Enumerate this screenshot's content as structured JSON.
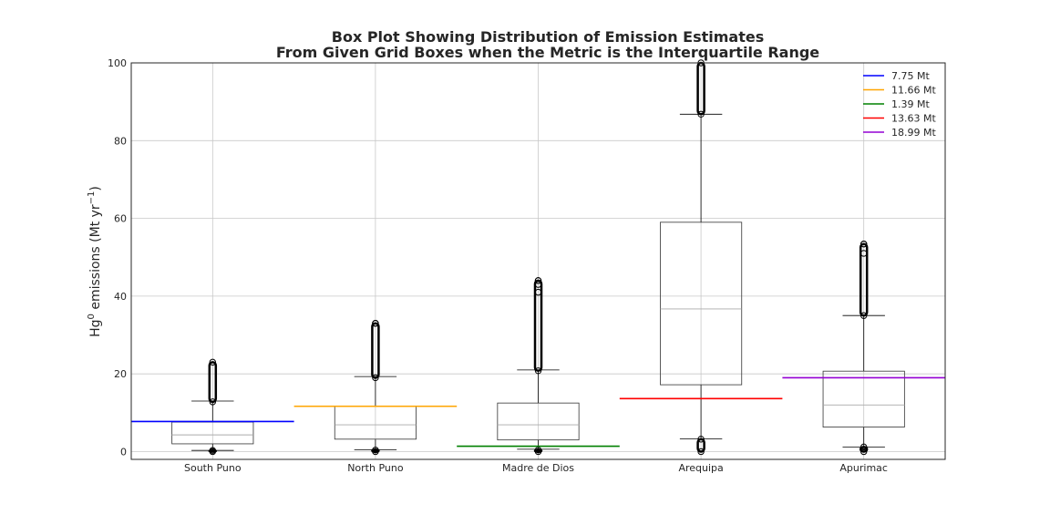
{
  "chart_data": {
    "type": "box",
    "title": [
      "Box Plot Showing Distribution of Emission Estimates",
      "From Given Grid Boxes when the Metric is the Interquartile Range"
    ],
    "ylabel": "Hg",
    "ylabel_sup": "0",
    "ylabel_rest": " emissions (Mt yr",
    "ylabel_sup2": "−1",
    "ylabel_end": ")",
    "ylim": [
      -2,
      100
    ],
    "yticks": [
      "0",
      "20",
      "40",
      "60",
      "80",
      "100"
    ],
    "grid": true,
    "legend_position": "top-right",
    "categories": [
      "South Puno",
      "North Puno",
      "Madre de Dios",
      "Arequipa",
      "Apurimac"
    ],
    "boxes": [
      {
        "whisker_low": 0.3,
        "q1": 2.0,
        "median": 4.3,
        "q3": 7.6,
        "whisker_high": 13.0,
        "outliers_low": [
          0.0,
          0.3
        ],
        "outliers_high": [
          12.8,
          23.0
        ]
      },
      {
        "whisker_low": 0.5,
        "q1": 3.2,
        "median": 6.9,
        "q3": 11.7,
        "whisker_high": 19.3,
        "outliers_low": [
          0.0,
          0.4
        ],
        "outliers_high": [
          19.0,
          31.0,
          33.0
        ]
      },
      {
        "whisker_low": 0.6,
        "q1": 3.0,
        "median": 6.9,
        "q3": 12.5,
        "whisker_high": 21.0,
        "outliers_low": [
          0.0,
          0.4
        ],
        "outliers_high": [
          20.8,
          38.0,
          41.0,
          43.0,
          44.0
        ]
      },
      {
        "whisker_low": 3.3,
        "q1": 17.2,
        "median": 36.7,
        "q3": 59.0,
        "whisker_high": 86.8,
        "outliers_low": [
          0.0,
          3.2
        ],
        "outliers_high": [
          86.8,
          100.0
        ]
      },
      {
        "whisker_low": 1.2,
        "q1": 6.3,
        "median": 12.0,
        "q3": 20.7,
        "whisker_high": 35.0,
        "outliers_low": [
          0.0,
          1.2
        ],
        "outliers_high": [
          35.0,
          49.0,
          51.0,
          53.4
        ]
      }
    ],
    "reference_lines": [
      {
        "label": "7.75 Mt",
        "value": 7.75,
        "color": "#0000ff"
      },
      {
        "label": "11.66 Mt",
        "value": 11.66,
        "color": "#ffa500"
      },
      {
        "label": "1.39 Mt",
        "value": 1.39,
        "color": "#008000"
      },
      {
        "label": "13.63 Mt",
        "value": 13.63,
        "color": "#ff0000"
      },
      {
        "label": "18.99 Mt",
        "value": 18.99,
        "color": "#9400d3"
      }
    ]
  }
}
